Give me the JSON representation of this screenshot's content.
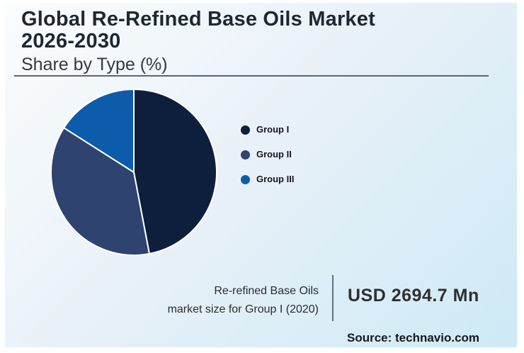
{
  "header": {
    "title_line1": "Global Re-Refined Base Oils Market",
    "title_line2": "2026-2030",
    "subtitle": "Share by Type (%)"
  },
  "chart_data": {
    "type": "pie",
    "title": "Global Re-Refined Base Oils Market 2026-2030",
    "subtitle": "Share by Type (%)",
    "unit": "%",
    "labels": [
      "Group I",
      "Group II",
      "Group III"
    ],
    "values": [
      47,
      37,
      16
    ],
    "colors": [
      "#0d1f3c",
      "#2e4370",
      "#0d5cac"
    ],
    "start_angle_deg": 0,
    "direction": "clockwise",
    "legend_position": "right",
    "slice_border_color": "#ffffff"
  },
  "footer": {
    "caption_line1": "Re-refined Base Oils",
    "caption_line2": "market size for Group I (2020)",
    "market_size_value": "USD 2694.7 Mn",
    "source": "Source: technavio.com"
  }
}
